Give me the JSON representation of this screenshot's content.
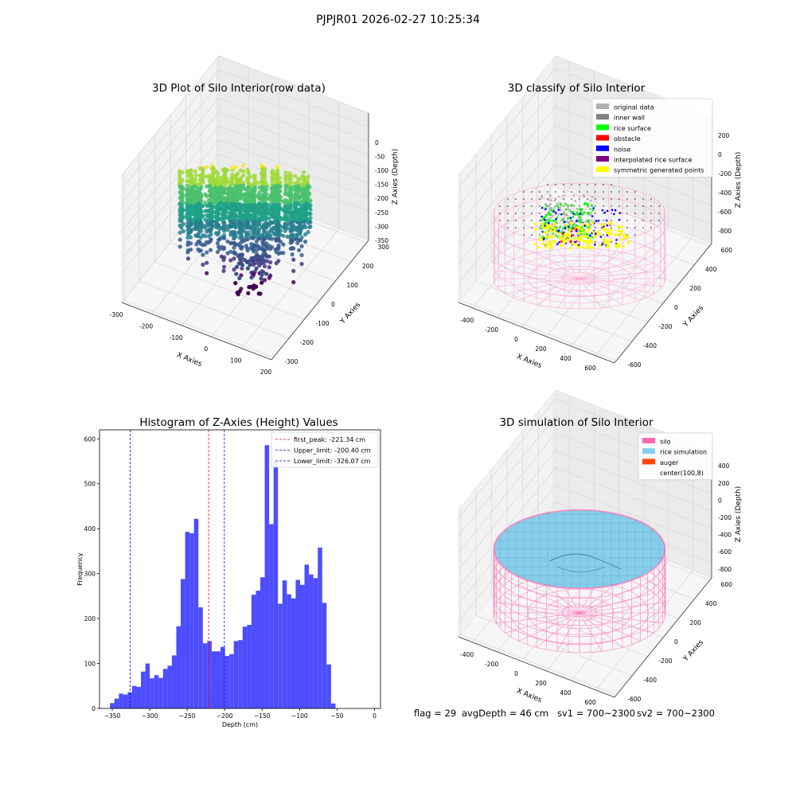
{
  "suptitle": "PJPJR01 2026-02-27 10:25:34",
  "panels": {
    "raw": {
      "title": "3D Plot of Silo Interior(row data)",
      "xlabel": "X Axies",
      "ylabel": "Y Axies",
      "zlabel": "Z Axies (Depth)",
      "xticks": [
        "-300",
        "-200",
        "-100",
        "0",
        "100",
        "200"
      ],
      "yticks": [
        "300",
        "200",
        "100",
        "0",
        "-100",
        "-200",
        "-300"
      ],
      "zticks": [
        "0",
        "-50",
        "-100",
        "-150",
        "-200",
        "-250",
        "-300",
        "-350"
      ]
    },
    "classify": {
      "title": "3D classify of Silo Interior",
      "xlabel": "X Axies",
      "ylabel": "Y Axies",
      "zlabel": "Z Axies (Depth)",
      "xticks": [
        "-400",
        "-200",
        "0",
        "200",
        "400",
        "600"
      ],
      "yticks": [
        "600",
        "400",
        "200",
        "0",
        "-200",
        "-400",
        "-600"
      ],
      "zticks": [
        "200",
        "0",
        "-200",
        "-400",
        "-600",
        "-800"
      ],
      "legend": [
        {
          "label": "original data",
          "color": "#b0b0b0"
        },
        {
          "label": "inner wall",
          "color": "#808080"
        },
        {
          "label": "rice surface",
          "color": "#00ff00"
        },
        {
          "label": "obstacle",
          "color": "#ff0000"
        },
        {
          "label": "noise",
          "color": "#0000ff"
        },
        {
          "label": "interpolated rice surface",
          "color": "#800080"
        },
        {
          "label": "symmetric generated points",
          "color": "#ffff00"
        }
      ]
    },
    "simulation": {
      "title": "3D simulation of Silo Interior",
      "xlabel": "X Axies",
      "ylabel": "Y Axies",
      "zlabel": "Z Axies (Depth)",
      "xticks": [
        "-400",
        "-200",
        "0",
        "200",
        "400",
        "600"
      ],
      "yticks": [
        "600",
        "400",
        "200",
        "0",
        "-200",
        "-400",
        "-600"
      ],
      "zticks": [
        "400",
        "200",
        "0",
        "-200",
        "-400",
        "-600",
        "-800"
      ],
      "legend": [
        {
          "label": "silo",
          "color": "#ff69b4"
        },
        {
          "label": "rice simulation",
          "color": "#87ceeb"
        },
        {
          "label": "auger",
          "color": "#ff4500"
        },
        {
          "label": "center(100,8)",
          "color": ""
        }
      ]
    }
  },
  "chart_data": [
    {
      "type": "bar",
      "title": "Histogram of Z-Axies (Height) Values",
      "xlabel": "Depth (cm)",
      "ylabel": "Frequency",
      "xlim": [
        -367,
        8
      ],
      "ylim": [
        0,
        620
      ],
      "xticks": [
        -350,
        -300,
        -250,
        -200,
        -150,
        -100,
        -50,
        0
      ],
      "yticks": [
        0,
        100,
        200,
        300,
        400,
        500,
        600
      ],
      "bar_color": "#4d4dff",
      "bin_start": -353,
      "bin_width": 5.9,
      "values": [
        12,
        22,
        33,
        31,
        36,
        50,
        48,
        82,
        100,
        67,
        74,
        68,
        88,
        95,
        118,
        183,
        288,
        393,
        390,
        422,
        225,
        145,
        150,
        127,
        127,
        137,
        117,
        121,
        150,
        152,
        182,
        186,
        253,
        262,
        292,
        586,
        410,
        550,
        233,
        285,
        254,
        245,
        286,
        275,
        320,
        298,
        290,
        358,
        235,
        98,
        11
      ],
      "vlines": [
        {
          "label": "first_peak: -221.34 cm",
          "x": -221.34,
          "color": "#ff0000"
        },
        {
          "label": "Upper_limit: -200.40 cm",
          "x": -200.4,
          "color": "#0000ff"
        },
        {
          "label": "Lower_limit: -326.07 cm",
          "x": -326.07,
          "color": "#0000ff"
        }
      ],
      "legend_position": "upper right"
    }
  ],
  "status": {
    "flag": "flag = 29",
    "avg_depth": "avgDepth = 46 cm",
    "sv1": "sv1 = 700~2300",
    "sv2": "sv2 = 700~2300"
  }
}
